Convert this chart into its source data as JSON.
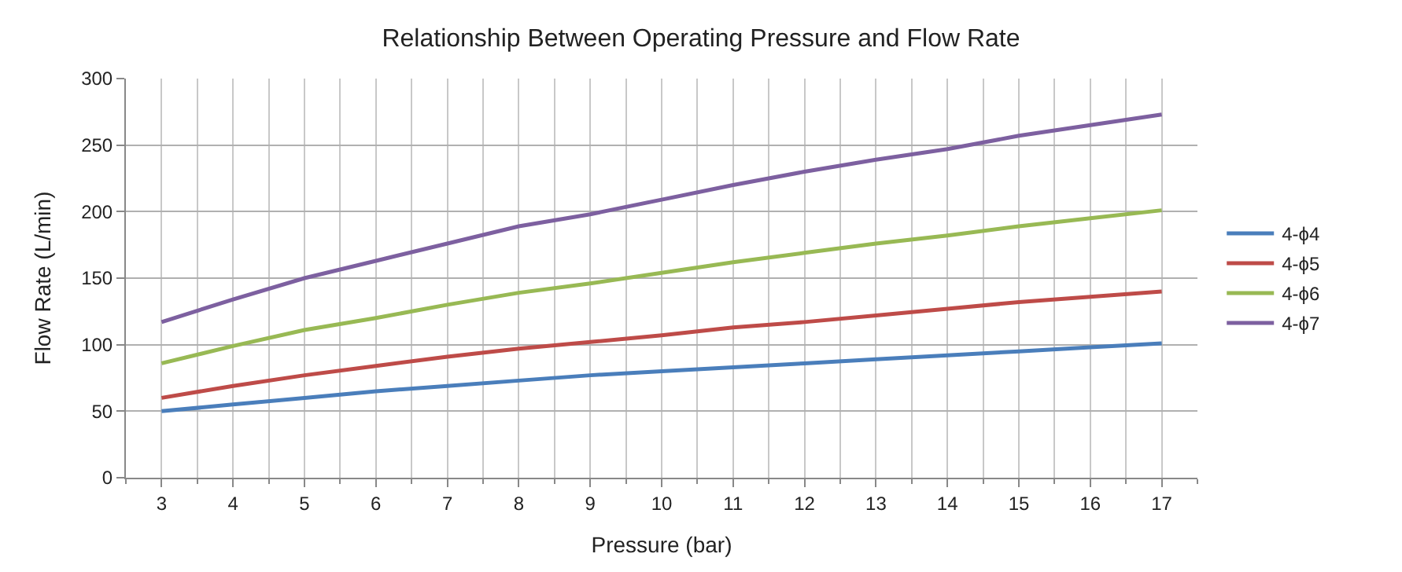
{
  "chart_data": {
    "type": "line",
    "title": "Relationship Between Operating Pressure and Flow Rate",
    "xlabel": "Pressure (bar)",
    "ylabel": "Flow Rate (L/min)",
    "categories": [
      "3",
      "4",
      "5",
      "6",
      "7",
      "8",
      "9",
      "10",
      "11",
      "12",
      "13",
      "14",
      "15",
      "16",
      "17"
    ],
    "series": [
      {
        "name": "4-ϕ4",
        "color": "#4a7ebb",
        "values": [
          50,
          55,
          60,
          65,
          69,
          73,
          77,
          80,
          83,
          86,
          89,
          92,
          95,
          98,
          101
        ]
      },
      {
        "name": "4-ϕ5",
        "color": "#be4b48",
        "values": [
          60,
          69,
          77,
          84,
          91,
          97,
          102,
          107,
          113,
          117,
          122,
          127,
          132,
          136,
          140
        ]
      },
      {
        "name": "4-ϕ6",
        "color": "#98b954",
        "values": [
          86,
          99,
          111,
          120,
          130,
          139,
          146,
          154,
          162,
          169,
          176,
          182,
          189,
          195,
          201
        ]
      },
      {
        "name": "4-ϕ7",
        "color": "#7d60a0",
        "values": [
          117,
          134,
          150,
          163,
          176,
          189,
          198,
          209,
          220,
          230,
          239,
          247,
          257,
          265,
          273
        ]
      }
    ],
    "ylim": [
      0,
      300
    ],
    "yticks": [
      0,
      50,
      100,
      150,
      200,
      250,
      300
    ],
    "grid": true,
    "legend": "right",
    "marker": "none",
    "line_style": "solid"
  }
}
